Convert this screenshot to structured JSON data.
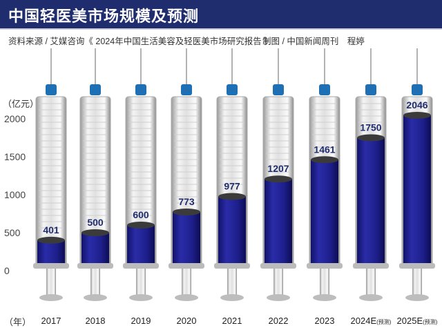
{
  "title": "中国轻医美市场规模及预测",
  "source": "资料来源 / 艾媒咨询《 2024年中国生活美容及轻医美市场研究报告 》",
  "credit": "制图 / 中国新闻周刊　程婷",
  "chart_data": {
    "type": "bar",
    "title": "中国轻医美市场规模及预测",
    "ylabel": "（亿元）",
    "xlabel": "（年）",
    "ylim": [
      0,
      2000
    ],
    "yticks": [
      0,
      500,
      1000,
      1500,
      2000
    ],
    "categories": [
      "2017",
      "2018",
      "2019",
      "2020",
      "2021",
      "2022",
      "2023",
      "2024E",
      "2025E"
    ],
    "category_notes": [
      "",
      "",
      "",
      "",
      "",
      "",
      "",
      "(预测)",
      "(预测)"
    ],
    "values": [
      401,
      500,
      600,
      773,
      977,
      1207,
      1461,
      1750,
      2046
    ],
    "colors": {
      "fill": "#1e1f8c",
      "cap": "#1f6fb5",
      "header": "#1f2d6e"
    }
  }
}
